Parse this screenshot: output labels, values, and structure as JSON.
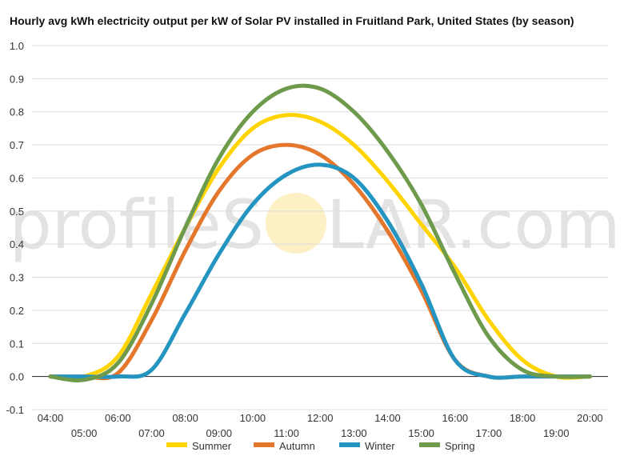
{
  "watermark": {
    "left_text": "profileS",
    "right_text": "LAR.com",
    "sun_color": "#fdf0c4"
  },
  "chart_data": {
    "type": "line",
    "title": "Hourly avg kWh electricity output per kW of Solar PV installed in Fruitland Park, United States (by season)",
    "xlabel": "",
    "ylabel": "",
    "ylim": [
      -0.1,
      1.0
    ],
    "yticks": [
      "-0.1",
      "0.0",
      "0.1",
      "0.2",
      "0.3",
      "0.4",
      "0.5",
      "0.6",
      "0.7",
      "0.8",
      "0.9",
      "1.0"
    ],
    "x": [
      "04:00",
      "05:00",
      "06:00",
      "07:00",
      "08:00",
      "09:00",
      "10:00",
      "11:00",
      "12:00",
      "13:00",
      "14:00",
      "15:00",
      "16:00",
      "17:00",
      "18:00",
      "19:00",
      "20:00"
    ],
    "grid": true,
    "legend_position": "bottom",
    "series": [
      {
        "name": "Summer",
        "color": "#ffd400",
        "values": [
          0.0,
          0.0,
          0.06,
          0.25,
          0.45,
          0.63,
          0.75,
          0.79,
          0.77,
          0.7,
          0.59,
          0.46,
          0.33,
          0.17,
          0.05,
          0.0,
          0.0
        ]
      },
      {
        "name": "Autumn",
        "color": "#e5772c",
        "values": [
          0.0,
          0.0,
          0.01,
          0.17,
          0.38,
          0.56,
          0.67,
          0.7,
          0.67,
          0.58,
          0.44,
          0.26,
          0.05,
          0.0,
          0.0,
          0.0,
          0.0
        ]
      },
      {
        "name": "Winter",
        "color": "#2494c0",
        "values": [
          0.0,
          0.0,
          0.0,
          0.02,
          0.19,
          0.37,
          0.52,
          0.61,
          0.64,
          0.6,
          0.47,
          0.28,
          0.05,
          0.0,
          0.0,
          0.0,
          0.0
        ]
      },
      {
        "name": "Spring",
        "color": "#6e9a4c",
        "values": [
          0.0,
          -0.01,
          0.04,
          0.22,
          0.45,
          0.66,
          0.8,
          0.87,
          0.87,
          0.8,
          0.68,
          0.52,
          0.31,
          0.12,
          0.02,
          0.0,
          0.0
        ]
      }
    ]
  }
}
